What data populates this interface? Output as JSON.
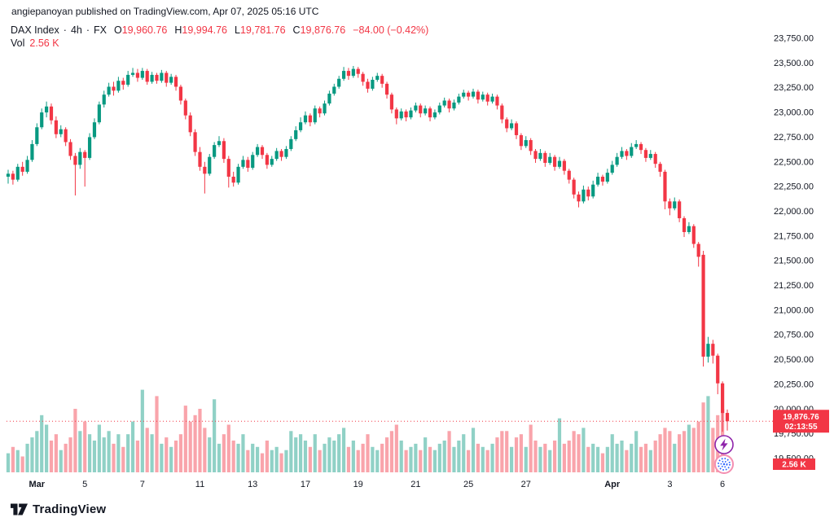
{
  "header": {
    "attribution": "angiepanoyan published on TradingView.com, Apr 07, 2025 05:16 UTC"
  },
  "legend": {
    "title": "DAX Index",
    "separator": "·",
    "interval": "4h",
    "market": "FX",
    "ohlc": [
      {
        "label": "O",
        "value": "19,960.76"
      },
      {
        "label": "H",
        "value": "19,994.76"
      },
      {
        "label": "L",
        "value": "19,781.76"
      },
      {
        "label": "C",
        "value": "19,876.76"
      }
    ],
    "change": "−84.00 (−0.42%)",
    "volume_label": "Vol",
    "volume_value": "2.56 K"
  },
  "footer": {
    "brand": "TradingView"
  },
  "floating_buttons": [
    {
      "name": "lightning-button"
    },
    {
      "name": "dotted-sphere-button"
    }
  ],
  "chart_data": {
    "type": "candlestick",
    "title": "DAX Index · 4h · FX",
    "symbol": "DAX Index",
    "interval": "4h",
    "exchange": "FX",
    "legend_note": "volume pane overlaid at bottom, units in K",
    "ylim": [
      19500,
      23750
    ],
    "y_ticks": [
      19500,
      19750,
      20000,
      20250,
      20500,
      20750,
      21000,
      21250,
      21500,
      21750,
      22000,
      22250,
      22500,
      22750,
      23000,
      23250,
      23500,
      23750
    ],
    "x_ticks": [
      {
        "i": 6,
        "label": "Mar"
      },
      {
        "i": 16,
        "label": "5"
      },
      {
        "i": 28,
        "label": "7"
      },
      {
        "i": 40,
        "label": "11"
      },
      {
        "i": 51,
        "label": "13"
      },
      {
        "i": 62,
        "label": "17"
      },
      {
        "i": 73,
        "label": "19"
      },
      {
        "i": 85,
        "label": "21"
      },
      {
        "i": 96,
        "label": "25"
      },
      {
        "i": 108,
        "label": "27"
      },
      {
        "i": 126,
        "label": "Apr"
      },
      {
        "i": 138,
        "label": "3"
      },
      {
        "i": 149,
        "label": "6"
      }
    ],
    "last": {
      "price": 19876.76,
      "countdown": "02:13:55",
      "volume": 2.56,
      "volume_label": "2.56 K",
      "open": 19960.76,
      "high": 19994.76,
      "low": 19781.76,
      "close": 19876.76,
      "change": -84.0,
      "change_pct": -0.42
    },
    "colors": {
      "up": "#089981",
      "down": "#f23645",
      "volume_up": "rgba(8,153,129,0.45)",
      "volume_down": "rgba(242,54,69,0.45)",
      "axis_text": "#131722",
      "badge": "#f23645",
      "icon_purple": "#8e24aa",
      "icon_blue": "#2962ff",
      "icon_ring": "#f48fb1"
    },
    "candles": [
      [
        22350,
        22420,
        22280,
        22380,
        6
      ],
      [
        22380,
        22410,
        22270,
        22320,
        8
      ],
      [
        22320,
        22480,
        22300,
        22450,
        7
      ],
      [
        22450,
        22500,
        22360,
        22400,
        5
      ],
      [
        22400,
        22560,
        22380,
        22520,
        9
      ],
      [
        22520,
        22720,
        22500,
        22680,
        11
      ],
      [
        22680,
        22890,
        22660,
        22850,
        13
      ],
      [
        22850,
        23040,
        22830,
        23000,
        18
      ],
      [
        23000,
        23110,
        22950,
        23060,
        15
      ],
      [
        23060,
        23090,
        22880,
        22920,
        10
      ],
      [
        22920,
        22960,
        22740,
        22780,
        12
      ],
      [
        22780,
        22870,
        22750,
        22830,
        7
      ],
      [
        22830,
        22850,
        22660,
        22700,
        9
      ],
      [
        22700,
        22730,
        22520,
        22560,
        11
      ],
      [
        22560,
        22590,
        22160,
        22470,
        20
      ],
      [
        22470,
        22640,
        22430,
        22600,
        13
      ],
      [
        22600,
        22620,
        22250,
        22540,
        16
      ],
      [
        22540,
        22790,
        22520,
        22750,
        12
      ],
      [
        22750,
        22940,
        22730,
        22900,
        10
      ],
      [
        22900,
        23110,
        22880,
        23080,
        15
      ],
      [
        23080,
        23220,
        23050,
        23180,
        11
      ],
      [
        23180,
        23300,
        23160,
        23260,
        13
      ],
      [
        23260,
        23310,
        23170,
        23220,
        9
      ],
      [
        23220,
        23360,
        23200,
        23320,
        12
      ],
      [
        23320,
        23350,
        23230,
        23280,
        8
      ],
      [
        23280,
        23420,
        23260,
        23380,
        12
      ],
      [
        23380,
        23450,
        23360,
        23400,
        16
      ],
      [
        23400,
        23440,
        23310,
        23350,
        10
      ],
      [
        23350,
        23450,
        23330,
        23420,
        26
      ],
      [
        23420,
        23440,
        23280,
        23310,
        14
      ],
      [
        23310,
        23410,
        23290,
        23380,
        12
      ],
      [
        23380,
        23400,
        23290,
        23320,
        24
      ],
      [
        23320,
        23430,
        23300,
        23400,
        9
      ],
      [
        23400,
        23420,
        23260,
        23300,
        11
      ],
      [
        23300,
        23390,
        23280,
        23360,
        8
      ],
      [
        23360,
        23380,
        23220,
        23260,
        10
      ],
      [
        23260,
        23280,
        23080,
        23120,
        12
      ],
      [
        23120,
        23140,
        22930,
        22970,
        21
      ],
      [
        22970,
        23000,
        22760,
        22800,
        16
      ],
      [
        22800,
        22830,
        22560,
        22600,
        18
      ],
      [
        22600,
        22650,
        22410,
        22450,
        20
      ],
      [
        22450,
        22500,
        22180,
        22380,
        14
      ],
      [
        22380,
        22580,
        22360,
        22550,
        11
      ],
      [
        22550,
        22700,
        22530,
        22670,
        23
      ],
      [
        22670,
        22760,
        22650,
        22710,
        9
      ],
      [
        22710,
        22740,
        22490,
        22530,
        12
      ],
      [
        22530,
        22560,
        22240,
        22350,
        15
      ],
      [
        22350,
        22400,
        22250,
        22290,
        10
      ],
      [
        22290,
        22480,
        22270,
        22450,
        9
      ],
      [
        22450,
        22560,
        22430,
        22520,
        12
      ],
      [
        22520,
        22550,
        22400,
        22440,
        7
      ],
      [
        22440,
        22600,
        22420,
        22570,
        9
      ],
      [
        22570,
        22680,
        22550,
        22650,
        8
      ],
      [
        22650,
        22670,
        22530,
        22570,
        6
      ],
      [
        22570,
        22590,
        22430,
        22470,
        10
      ],
      [
        22470,
        22560,
        22450,
        22530,
        7
      ],
      [
        22530,
        22640,
        22510,
        22610,
        8
      ],
      [
        22610,
        22630,
        22510,
        22550,
        6
      ],
      [
        22550,
        22660,
        22530,
        22630,
        7
      ],
      [
        22630,
        22760,
        22610,
        22730,
        13
      ],
      [
        22730,
        22860,
        22710,
        22820,
        11
      ],
      [
        22820,
        22950,
        22800,
        22900,
        12
      ],
      [
        22900,
        23010,
        22880,
        22970,
        10
      ],
      [
        22970,
        22990,
        22860,
        22900,
        8
      ],
      [
        22900,
        23070,
        22880,
        23040,
        12
      ],
      [
        23040,
        23060,
        22950,
        22990,
        7
      ],
      [
        22990,
        23120,
        22970,
        23090,
        9
      ],
      [
        23090,
        23220,
        23070,
        23190,
        11
      ],
      [
        23190,
        23290,
        23170,
        23260,
        10
      ],
      [
        23260,
        23370,
        23240,
        23340,
        12
      ],
      [
        23340,
        23460,
        23320,
        23420,
        14
      ],
      [
        23420,
        23450,
        23330,
        23370,
        8
      ],
      [
        23370,
        23470,
        23350,
        23440,
        10
      ],
      [
        23440,
        23460,
        23350,
        23390,
        7
      ],
      [
        23390,
        23410,
        23270,
        23310,
        9
      ],
      [
        23310,
        23340,
        23200,
        23240,
        12
      ],
      [
        23240,
        23360,
        23220,
        23330,
        8
      ],
      [
        23330,
        23400,
        23310,
        23370,
        7
      ],
      [
        23370,
        23390,
        23250,
        23290,
        9
      ],
      [
        23290,
        23310,
        23140,
        23180,
        11
      ],
      [
        23180,
        23200,
        22990,
        23030,
        13
      ],
      [
        23030,
        23050,
        22880,
        22940,
        15
      ],
      [
        22940,
        23040,
        22920,
        23010,
        10
      ],
      [
        23010,
        23030,
        22910,
        22950,
        7
      ],
      [
        22950,
        23050,
        22930,
        23020,
        8
      ],
      [
        23020,
        23100,
        23000,
        23070,
        9
      ],
      [
        23070,
        23090,
        22950,
        22990,
        7
      ],
      [
        22990,
        23070,
        22970,
        23040,
        11
      ],
      [
        23040,
        23060,
        22910,
        22950,
        8
      ],
      [
        22950,
        23030,
        22930,
        23000,
        7
      ],
      [
        23000,
        23100,
        22980,
        23070,
        9
      ],
      [
        23070,
        23150,
        23050,
        23120,
        10
      ],
      [
        23120,
        23140,
        23000,
        23040,
        13
      ],
      [
        23040,
        23130,
        23020,
        23100,
        8
      ],
      [
        23100,
        23190,
        23080,
        23160,
        10
      ],
      [
        23160,
        23230,
        23140,
        23200,
        12
      ],
      [
        23200,
        23220,
        23120,
        23160,
        7
      ],
      [
        23160,
        23240,
        23140,
        23210,
        14
      ],
      [
        23210,
        23230,
        23090,
        23130,
        9
      ],
      [
        23130,
        23210,
        23110,
        23180,
        8
      ],
      [
        23180,
        23200,
        23070,
        23110,
        7
      ],
      [
        23110,
        23190,
        23090,
        23160,
        9
      ],
      [
        23160,
        23180,
        23030,
        23070,
        11
      ],
      [
        23070,
        23090,
        22890,
        22930,
        13
      ],
      [
        22930,
        22950,
        22800,
        22840,
        13
      ],
      [
        22840,
        22930,
        22820,
        22890,
        8
      ],
      [
        22890,
        22910,
        22730,
        22770,
        11
      ],
      [
        22770,
        22790,
        22620,
        22660,
        12
      ],
      [
        22660,
        22760,
        22640,
        22720,
        8
      ],
      [
        22720,
        22740,
        22570,
        22610,
        15
      ],
      [
        22610,
        22630,
        22490,
        22530,
        10
      ],
      [
        22530,
        22630,
        22510,
        22590,
        8
      ],
      [
        22590,
        22610,
        22450,
        22490,
        9
      ],
      [
        22490,
        22590,
        22470,
        22550,
        7
      ],
      [
        22550,
        22570,
        22410,
        22450,
        10
      ],
      [
        22450,
        22550,
        22430,
        22510,
        17
      ],
      [
        22510,
        22530,
        22370,
        22410,
        9
      ],
      [
        22410,
        22430,
        22280,
        22320,
        10
      ],
      [
        22320,
        22340,
        22130,
        22170,
        13
      ],
      [
        22170,
        22200,
        22040,
        22100,
        12
      ],
      [
        22100,
        22260,
        22080,
        22220,
        14
      ],
      [
        22220,
        22250,
        22110,
        22150,
        8
      ],
      [
        22150,
        22310,
        22130,
        22270,
        9
      ],
      [
        22270,
        22390,
        22250,
        22350,
        8
      ],
      [
        22350,
        22370,
        22260,
        22300,
        6
      ],
      [
        22300,
        22430,
        22280,
        22390,
        8
      ],
      [
        22390,
        22510,
        22370,
        22470,
        12
      ],
      [
        22470,
        22590,
        22450,
        22550,
        9
      ],
      [
        22550,
        22650,
        22530,
        22610,
        10
      ],
      [
        22610,
        22630,
        22520,
        22560,
        7
      ],
      [
        22560,
        22690,
        22540,
        22650,
        9
      ],
      [
        22650,
        22720,
        22630,
        22680,
        13
      ],
      [
        22680,
        22700,
        22580,
        22620,
        8
      ],
      [
        22620,
        22640,
        22500,
        22540,
        9
      ],
      [
        22540,
        22620,
        22520,
        22580,
        7
      ],
      [
        22580,
        22600,
        22440,
        22480,
        10
      ],
      [
        22480,
        22500,
        22350,
        22400,
        12
      ],
      [
        22400,
        22420,
        22020,
        22100,
        14
      ],
      [
        22100,
        22130,
        21960,
        22030,
        13
      ],
      [
        22030,
        22140,
        22010,
        22100,
        9
      ],
      [
        22100,
        22120,
        21890,
        21930,
        12
      ],
      [
        21930,
        21950,
        21740,
        21790,
        13
      ],
      [
        21790,
        21890,
        21770,
        21850,
        15
      ],
      [
        21850,
        21870,
        21630,
        21670,
        14
      ],
      [
        21670,
        21690,
        21440,
        21540,
        16
      ],
      [
        21560,
        21600,
        20430,
        20530,
        22
      ],
      [
        20530,
        20730,
        20470,
        20660,
        24
      ],
      [
        20660,
        20700,
        20460,
        20540,
        14
      ],
      [
        20540,
        20560,
        20150,
        20260,
        18
      ],
      [
        20260,
        20280,
        19770,
        19960,
        20
      ],
      [
        19960.76,
        19994.76,
        19781.76,
        19876.76,
        2.56
      ]
    ]
  }
}
